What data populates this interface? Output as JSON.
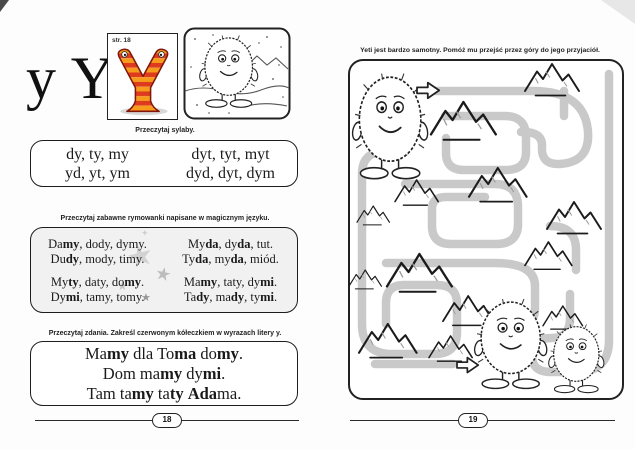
{
  "colors": {
    "letter_red": "#de3a1e",
    "letter_orange": "#f79b1c",
    "maze_path_gray": "#c9c9c9",
    "rhymes_box_gray": "#f1f1f1",
    "star_gray": "#c4c4c4"
  },
  "decor": {
    "star_glyph": "★",
    "sparkle_glyph": "✦"
  },
  "left_page": {
    "letters": "y Y",
    "letter_card": {
      "page_ref": "str. 18"
    },
    "syllables": {
      "heading": "Przeczytaj sylaby.",
      "col1": [
        "dy, ty, my",
        "yd, yt, ym"
      ],
      "col2": [
        "dyt, tyt, myt",
        "dyd, dyt, dym"
      ]
    },
    "rhymes": {
      "heading": "Przeczytaj zabawne rymowanki napisane w magicznym języku.",
      "column1": [
        [
          {
            "t": "Da"
          },
          {
            "t": "my",
            "b": true
          },
          {
            "t": ", dody, dymy."
          }
        ],
        [
          {
            "t": "Du"
          },
          {
            "t": "dy",
            "b": true
          },
          {
            "t": ", mody, timy."
          }
        ],
        [
          {
            "t": "My"
          },
          {
            "t": "ty",
            "b": true
          },
          {
            "t": ", daty, do"
          },
          {
            "t": "my",
            "b": true
          },
          {
            "t": "."
          }
        ],
        [
          {
            "t": "Dy"
          },
          {
            "t": "mi",
            "b": true
          },
          {
            "t": ", tamy, tomy."
          }
        ]
      ],
      "column2": [
        [
          {
            "t": "My"
          },
          {
            "t": "da",
            "b": true
          },
          {
            "t": ", dy"
          },
          {
            "t": "da",
            "b": true
          },
          {
            "t": ", tut."
          }
        ],
        [
          {
            "t": "Ty"
          },
          {
            "t": "da",
            "b": true
          },
          {
            "t": ", my"
          },
          {
            "t": "da",
            "b": true
          },
          {
            "t": ", miód."
          }
        ],
        [
          {
            "t": "Ma"
          },
          {
            "t": "my",
            "b": true
          },
          {
            "t": ", taty, dy"
          },
          {
            "t": "mi",
            "b": true
          },
          {
            "t": "."
          }
        ],
        [
          {
            "t": "Ta"
          },
          {
            "t": "dy",
            "b": true
          },
          {
            "t": ", ma"
          },
          {
            "t": "dy",
            "b": true
          },
          {
            "t": ", ty"
          },
          {
            "t": "mi",
            "b": true
          },
          {
            "t": "."
          }
        ]
      ]
    },
    "sentences": {
      "heading": [
        {
          "t": "Przeczytaj zdania. Zakreśl czerwonym kółeczkiem w wyrazach litery "
        },
        {
          "t": "y",
          "b": true
        },
        {
          "t": "."
        }
      ],
      "lines": [
        [
          {
            "t": "Ma"
          },
          {
            "t": "my",
            "b": true
          },
          {
            "t": " dla To"
          },
          {
            "t": "ma",
            "b": true
          },
          {
            "t": " do"
          },
          {
            "t": "my",
            "b": true
          },
          {
            "t": "."
          }
        ],
        [
          {
            "t": "Dom ma"
          },
          {
            "t": "my",
            "b": true
          },
          {
            "t": " dy"
          },
          {
            "t": "mi",
            "b": true
          },
          {
            "t": "."
          }
        ],
        [
          {
            "t": "Tam ta"
          },
          {
            "t": "my",
            "b": true
          },
          {
            "t": " ta"
          },
          {
            "t": "ty",
            "b": true
          },
          {
            "t": " "
          },
          {
            "t": "Ada",
            "b": true
          },
          {
            "t": "ma."
          }
        ]
      ]
    },
    "page_number": "18"
  },
  "right_page": {
    "heading": "Yeti jest bardzo samotny. Pomóż mu przejść przez góry do jego przyjaciół.",
    "page_number": "19"
  }
}
